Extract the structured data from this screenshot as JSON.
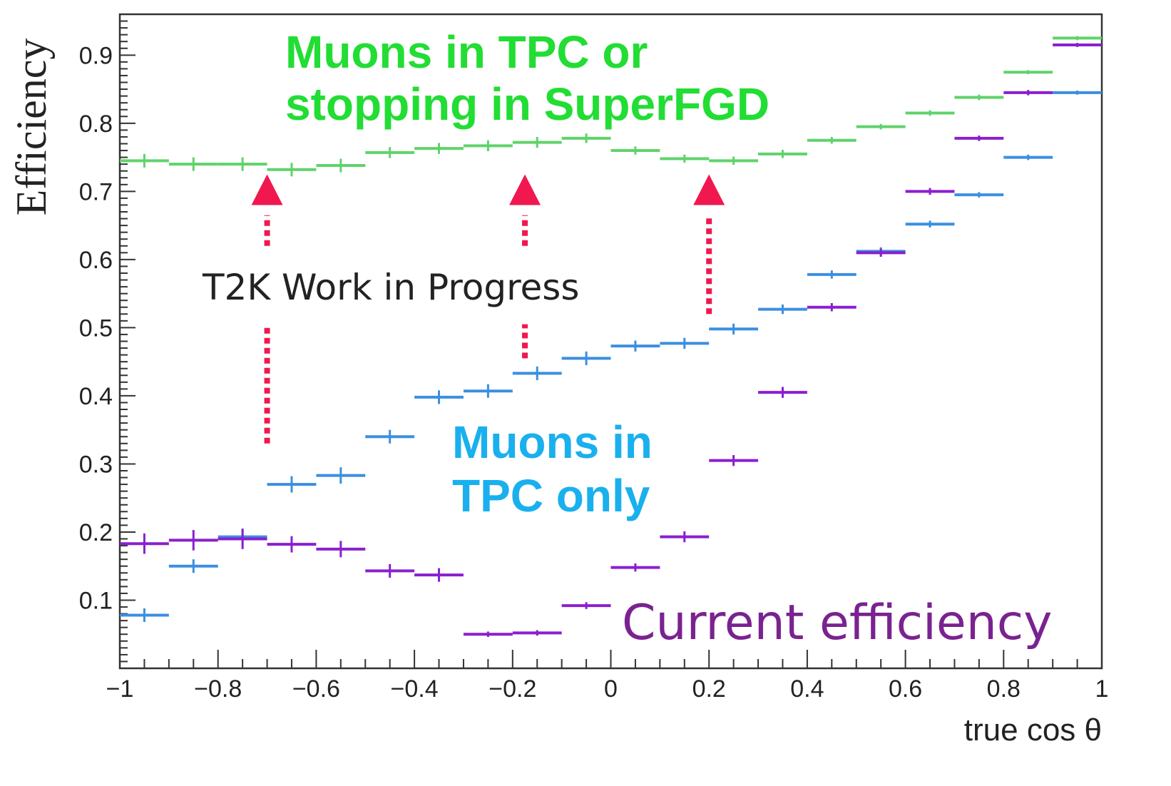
{
  "chart_data": {
    "type": "scatter",
    "title": "",
    "xlabel": "true cos θ",
    "ylabel": "Efficiency",
    "xlim": [
      -1,
      1
    ],
    "ylim": [
      0,
      0.96
    ],
    "x_ticks": [
      "−1",
      "−0.8",
      "−0.6",
      "−0.4",
      "−0.2",
      "0",
      "0.2",
      "0.4",
      "0.6",
      "0.8",
      "1"
    ],
    "y_ticks": [
      "0.1",
      "0.2",
      "0.3",
      "0.4",
      "0.5",
      "0.6",
      "0.7",
      "0.8",
      "0.9"
    ],
    "bin_edges": [
      -1,
      -0.9,
      -0.8,
      -0.7,
      -0.6,
      -0.5,
      -0.4,
      -0.3,
      -0.2,
      -0.1,
      0,
      0.1,
      0.2,
      0.3,
      0.4,
      0.5,
      0.6,
      0.7,
      0.8,
      0.9,
      1
    ],
    "series": [
      {
        "name": "Muons in TPC or stopping in SuperFGD",
        "color": "#5fd36b",
        "values": [
          0.745,
          0.74,
          0.74,
          0.732,
          0.738,
          0.757,
          0.763,
          0.767,
          0.772,
          0.778,
          0.76,
          0.748,
          0.745,
          0.755,
          0.775,
          0.795,
          0.815,
          0.838,
          0.875,
          0.925
        ],
        "errors": [
          0.01,
          0.01,
          0.01,
          0.01,
          0.01,
          0.008,
          0.008,
          0.008,
          0.008,
          0.007,
          0.006,
          0.006,
          0.006,
          0.006,
          0.005,
          0.004,
          0.004,
          0.004,
          0.003,
          0.003
        ]
      },
      {
        "name": "Muons in TPC only",
        "color": "#3b8fe0",
        "values": [
          0.078,
          0.15,
          0.193,
          0.27,
          0.283,
          0.34,
          0.398,
          0.407,
          0.433,
          0.455,
          0.473,
          0.477,
          0.498,
          0.527,
          0.578,
          0.612,
          0.652,
          0.695,
          0.75,
          0.845
        ],
        "errors": [
          0.01,
          0.01,
          0.012,
          0.012,
          0.012,
          0.01,
          0.01,
          0.01,
          0.01,
          0.01,
          0.008,
          0.008,
          0.008,
          0.007,
          0.006,
          0.006,
          0.005,
          0.004,
          0.004,
          0.003
        ]
      },
      {
        "name": "Current efficiency",
        "color": "#8a1fd0",
        "values": [
          0.183,
          0.188,
          0.19,
          0.182,
          0.175,
          0.143,
          0.137,
          0.05,
          0.052,
          0.092,
          0.148,
          0.193,
          0.305,
          0.405,
          0.53,
          0.61,
          0.7,
          0.778,
          0.845,
          0.915
        ],
        "errors": [
          0.015,
          0.015,
          0.015,
          0.012,
          0.012,
          0.01,
          0.01,
          0.004,
          0.004,
          0.005,
          0.006,
          0.008,
          0.008,
          0.008,
          0.006,
          0.006,
          0.005,
          0.004,
          0.004,
          0.003
        ]
      }
    ],
    "annotations": {
      "green_label_line1": "Muons in TPC or",
      "green_label_line2": "stopping in SuperFGD",
      "blue_label_line1": "Muons in",
      "blue_label_line2": "TPC only",
      "purple_label": "Current efficiency",
      "watermark": "T2K Work in Progress"
    },
    "annotation_colors": {
      "green": "#22dd33",
      "blue": "#1ab0ee",
      "purple": "#7a2290",
      "watermark": "#222222",
      "arrows": "#f0184e"
    },
    "grid": false,
    "legend": "none"
  }
}
